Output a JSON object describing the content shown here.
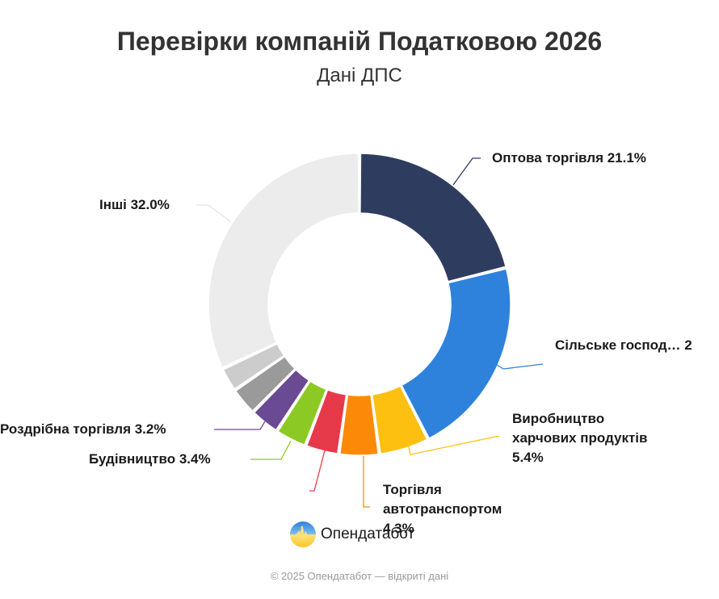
{
  "header": {
    "title": "Перевірки компаній Податковою 2026",
    "subtitle": "Дані ДПС"
  },
  "labels": {
    "wholesale": "Оптова торгівля 21.1%",
    "agriculture": "Сільське господ… 2",
    "food_line1": "Виробництво",
    "food_line2": "харчових продуктів",
    "food_line3": "5.4%",
    "auto_line1": "Торгівля",
    "auto_line2": "автотранспортом",
    "auto_line3": "4.3%",
    "construction": "Будівництво 3.4%",
    "retail": "Роздрібна торгівля 3.2%",
    "other": "Інші 32.0%"
  },
  "logo": {
    "text": "Опендатабот",
    "icon": "opendatabot-logo-icon"
  },
  "footer": {
    "text": "© 2025 Опендатабот — відкриті дані"
  },
  "chart_data": {
    "type": "pie",
    "variant": "donut",
    "title": "Перевірки компаній Податковою 2026",
    "subtitle": "Дані ДПС",
    "unit": "%",
    "start_angle": "top, clockwise",
    "slices": [
      {
        "label": "Оптова торгівля",
        "value": 21.1,
        "color": "#2e3d5f"
      },
      {
        "label": "Сільське господ…",
        "value": 21.4,
        "color": "#2f82dc",
        "note": "label truncated, value estimated"
      },
      {
        "label": "Виробництво харчових продуктів",
        "value": 5.4,
        "color": "#fdc010"
      },
      {
        "label": "Торгівля автотранспортом",
        "value": 4.3,
        "color": "#fc8a08"
      },
      {
        "label": "",
        "value": 3.6,
        "color": "#e63a4a",
        "note": "label not visible, value estimated"
      },
      {
        "label": "Будівництво",
        "value": 3.4,
        "color": "#8cc924"
      },
      {
        "label": "Роздрібна торгівля",
        "value": 3.2,
        "color": "#6a4a92"
      },
      {
        "label": "",
        "value": 3.0,
        "color": "#9a9a9a",
        "note": "label not visible, value estimated"
      },
      {
        "label": "",
        "value": 2.6,
        "color": "#cccccc",
        "note": "label not visible, value estimated"
      },
      {
        "label": "Інші",
        "value": 32.0,
        "color": "#ececec"
      }
    ]
  }
}
